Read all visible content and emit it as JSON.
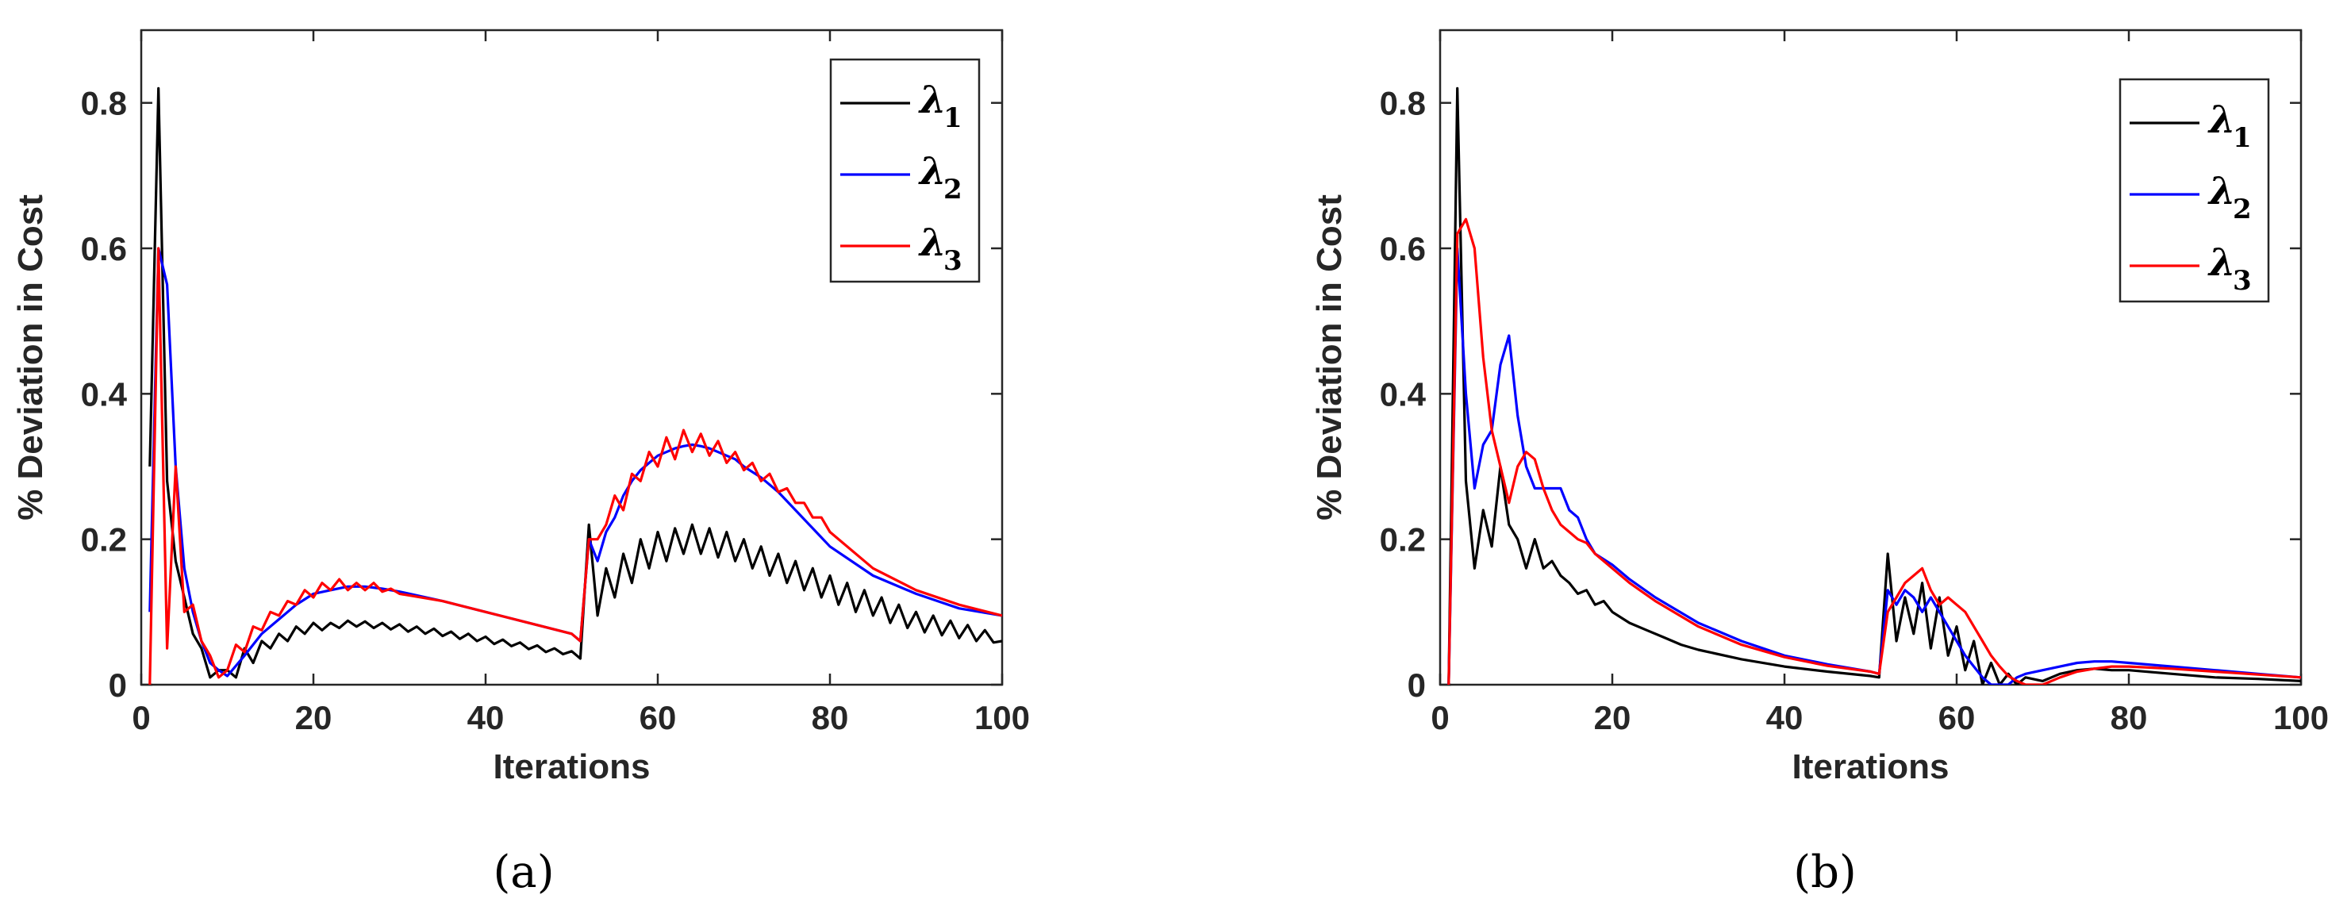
{
  "chart_data": [
    {
      "type": "line",
      "panel_label": "(a)",
      "xlabel": "Iterations",
      "ylabel": "% Deviation in Cost",
      "xlim": [
        0,
        100
      ],
      "ylim": [
        0,
        0.9
      ],
      "x_ticks": [
        0,
        20,
        40,
        60,
        80,
        100
      ],
      "x_tick_labels": [
        "0",
        "20",
        "40",
        "60",
        "80",
        "100"
      ],
      "y_ticks": [
        0,
        0.2,
        0.4,
        0.6,
        0.8
      ],
      "y_tick_labels": [
        "0",
        "0.2",
        "0.4",
        "0.6",
        "0.8"
      ],
      "legend_position": "top-right",
      "series": [
        {
          "name": "λ",
          "subscript": "1",
          "color": "#000000",
          "x": [
            1,
            2,
            3,
            4,
            5,
            6,
            7,
            8,
            9,
            10,
            11,
            12,
            13,
            14,
            15,
            16,
            17,
            18,
            19,
            20,
            21,
            22,
            23,
            24,
            25,
            26,
            27,
            28,
            29,
            30,
            31,
            32,
            33,
            34,
            35,
            36,
            37,
            38,
            39,
            40,
            41,
            42,
            43,
            44,
            45,
            46,
            47,
            48,
            49,
            50,
            51,
            52,
            53,
            54,
            55,
            56,
            57,
            58,
            59,
            60,
            61,
            62,
            63,
            64,
            65,
            66,
            67,
            68,
            69,
            70,
            71,
            72,
            73,
            74,
            75,
            76,
            77,
            78,
            79,
            80,
            81,
            82,
            83,
            84,
            85,
            86,
            87,
            88,
            89,
            90,
            91,
            92,
            93,
            94,
            95,
            96,
            97,
            98,
            99,
            100
          ],
          "y": [
            0.3,
            0.82,
            0.28,
            0.17,
            0.12,
            0.07,
            0.05,
            0.01,
            0.02,
            0.02,
            0.01,
            0.05,
            0.03,
            0.06,
            0.05,
            0.07,
            0.06,
            0.08,
            0.07,
            0.085,
            0.075,
            0.085,
            0.078,
            0.088,
            0.08,
            0.087,
            0.078,
            0.085,
            0.076,
            0.083,
            0.073,
            0.08,
            0.07,
            0.077,
            0.067,
            0.073,
            0.063,
            0.07,
            0.06,
            0.066,
            0.056,
            0.062,
            0.053,
            0.058,
            0.049,
            0.054,
            0.045,
            0.05,
            0.042,
            0.046,
            0.036,
            0.22,
            0.095,
            0.16,
            0.12,
            0.18,
            0.14,
            0.2,
            0.16,
            0.21,
            0.17,
            0.215,
            0.18,
            0.22,
            0.18,
            0.215,
            0.175,
            0.21,
            0.17,
            0.2,
            0.16,
            0.19,
            0.15,
            0.18,
            0.14,
            0.17,
            0.13,
            0.16,
            0.12,
            0.15,
            0.11,
            0.14,
            0.1,
            0.13,
            0.095,
            0.12,
            0.085,
            0.11,
            0.078,
            0.1,
            0.072,
            0.095,
            0.068,
            0.088,
            0.064,
            0.082,
            0.06,
            0.075,
            0.058,
            0.06
          ]
        },
        {
          "name": "λ",
          "subscript": "2",
          "color": "#0000ff",
          "x": [
            1,
            2,
            3,
            4,
            5,
            6,
            7,
            8,
            9,
            10,
            12,
            14,
            16,
            18,
            20,
            22,
            24,
            26,
            28,
            30,
            35,
            40,
            45,
            50,
            51,
            52,
            53,
            54,
            55,
            56,
            57,
            58,
            59,
            60,
            61,
            62,
            63,
            64,
            65,
            66,
            67,
            68,
            69,
            70,
            72,
            74,
            76,
            78,
            80,
            85,
            90,
            95,
            100
          ],
          "y": [
            0.1,
            0.6,
            0.55,
            0.3,
            0.16,
            0.1,
            0.06,
            0.03,
            0.02,
            0.012,
            0.04,
            0.07,
            0.09,
            0.11,
            0.125,
            0.13,
            0.135,
            0.135,
            0.132,
            0.128,
            0.115,
            0.1,
            0.085,
            0.07,
            0.06,
            0.2,
            0.17,
            0.21,
            0.23,
            0.26,
            0.28,
            0.295,
            0.305,
            0.315,
            0.32,
            0.325,
            0.328,
            0.33,
            0.328,
            0.325,
            0.32,
            0.315,
            0.31,
            0.3,
            0.285,
            0.265,
            0.24,
            0.215,
            0.19,
            0.15,
            0.125,
            0.105,
            0.095
          ]
        },
        {
          "name": "λ",
          "subscript": "3",
          "color": "#ff0000",
          "x": [
            1,
            2,
            3,
            4,
            5,
            6,
            7,
            8,
            9,
            10,
            11,
            12,
            13,
            14,
            15,
            16,
            17,
            18,
            19,
            20,
            21,
            22,
            23,
            24,
            25,
            26,
            27,
            28,
            29,
            30,
            35,
            40,
            45,
            50,
            51,
            52,
            53,
            54,
            55,
            56,
            57,
            58,
            59,
            60,
            61,
            62,
            63,
            64,
            65,
            66,
            67,
            68,
            69,
            70,
            71,
            72,
            73,
            74,
            75,
            76,
            77,
            78,
            79,
            80,
            85,
            90,
            95,
            100
          ],
          "y": [
            0.0,
            0.6,
            0.05,
            0.3,
            0.1,
            0.11,
            0.06,
            0.04,
            0.01,
            0.02,
            0.055,
            0.045,
            0.08,
            0.075,
            0.1,
            0.095,
            0.115,
            0.11,
            0.13,
            0.12,
            0.14,
            0.13,
            0.145,
            0.13,
            0.14,
            0.13,
            0.14,
            0.128,
            0.132,
            0.125,
            0.115,
            0.1,
            0.085,
            0.07,
            0.06,
            0.2,
            0.2,
            0.22,
            0.26,
            0.24,
            0.29,
            0.28,
            0.32,
            0.3,
            0.34,
            0.31,
            0.35,
            0.32,
            0.345,
            0.315,
            0.335,
            0.305,
            0.32,
            0.295,
            0.305,
            0.28,
            0.29,
            0.265,
            0.27,
            0.25,
            0.25,
            0.23,
            0.23,
            0.21,
            0.16,
            0.13,
            0.11,
            0.095
          ]
        }
      ]
    },
    {
      "type": "line",
      "panel_label": "(b)",
      "xlabel": "Iterations",
      "ylabel": "% Deviation in Cost",
      "xlim": [
        0,
        100
      ],
      "ylim": [
        0,
        0.9
      ],
      "x_ticks": [
        0,
        20,
        40,
        60,
        80,
        100
      ],
      "x_tick_labels": [
        "0",
        "20",
        "40",
        "60",
        "80",
        "100"
      ],
      "y_ticks": [
        0,
        0.2,
        0.4,
        0.6,
        0.8
      ],
      "y_tick_labels": [
        "0",
        "0.2",
        "0.4",
        "0.6",
        "0.8"
      ],
      "legend_position": "top-right",
      "series": [
        {
          "name": "λ",
          "subscript": "1",
          "color": "#000000",
          "x": [
            1,
            2,
            3,
            4,
            5,
            6,
            7,
            8,
            9,
            10,
            11,
            12,
            13,
            14,
            15,
            16,
            17,
            18,
            19,
            20,
            22,
            24,
            26,
            28,
            30,
            35,
            40,
            45,
            50,
            51,
            52,
            53,
            54,
            55,
            56,
            57,
            58,
            59,
            60,
            61,
            62,
            63,
            64,
            65,
            66,
            67,
            68,
            70,
            72,
            74,
            76,
            78,
            80,
            85,
            90,
            95,
            100
          ],
          "y": [
            0.0,
            0.82,
            0.28,
            0.16,
            0.24,
            0.19,
            0.3,
            0.22,
            0.2,
            0.16,
            0.2,
            0.16,
            0.17,
            0.15,
            0.14,
            0.125,
            0.13,
            0.11,
            0.115,
            0.1,
            0.085,
            0.075,
            0.065,
            0.055,
            0.048,
            0.035,
            0.025,
            0.018,
            0.012,
            0.01,
            0.18,
            0.06,
            0.12,
            0.07,
            0.14,
            0.05,
            0.12,
            0.04,
            0.08,
            0.02,
            0.06,
            0.0,
            0.03,
            0.0,
            0.015,
            0.0,
            0.01,
            0.005,
            0.015,
            0.02,
            0.022,
            0.02,
            0.02,
            0.015,
            0.01,
            0.008,
            0.005
          ]
        },
        {
          "name": "λ",
          "subscript": "2",
          "color": "#0000ff",
          "x": [
            1,
            2,
            3,
            4,
            5,
            6,
            7,
            8,
            9,
            10,
            11,
            12,
            13,
            14,
            15,
            16,
            17,
            18,
            20,
            22,
            25,
            30,
            35,
            40,
            45,
            50,
            51,
            52,
            53,
            54,
            55,
            56,
            57,
            58,
            59,
            60,
            61,
            62,
            63,
            64,
            65,
            66,
            67,
            68,
            70,
            72,
            74,
            76,
            78,
            80,
            85,
            90,
            95,
            100
          ],
          "y": [
            0.0,
            0.6,
            0.4,
            0.27,
            0.33,
            0.35,
            0.44,
            0.48,
            0.37,
            0.3,
            0.27,
            0.27,
            0.27,
            0.27,
            0.24,
            0.23,
            0.2,
            0.18,
            0.165,
            0.145,
            0.12,
            0.085,
            0.06,
            0.04,
            0.028,
            0.018,
            0.015,
            0.13,
            0.11,
            0.13,
            0.12,
            0.1,
            0.12,
            0.1,
            0.08,
            0.06,
            0.04,
            0.025,
            0.01,
            0.0,
            0.0,
            0.0,
            0.01,
            0.015,
            0.02,
            0.025,
            0.03,
            0.032,
            0.032,
            0.03,
            0.025,
            0.02,
            0.015,
            0.01
          ]
        },
        {
          "name": "λ",
          "subscript": "3",
          "color": "#ff0000",
          "x": [
            1,
            2,
            3,
            4,
            5,
            6,
            7,
            8,
            9,
            10,
            11,
            12,
            13,
            14,
            15,
            16,
            17,
            18,
            20,
            22,
            25,
            30,
            35,
            40,
            45,
            50,
            51,
            52,
            53,
            54,
            55,
            56,
            57,
            58,
            59,
            60,
            61,
            62,
            63,
            64,
            65,
            66,
            67,
            68,
            69,
            70,
            72,
            74,
            76,
            78,
            80,
            85,
            90,
            95,
            100
          ],
          "y": [
            0.0,
            0.62,
            0.64,
            0.6,
            0.45,
            0.35,
            0.3,
            0.25,
            0.3,
            0.32,
            0.31,
            0.27,
            0.24,
            0.22,
            0.21,
            0.2,
            0.195,
            0.18,
            0.16,
            0.14,
            0.115,
            0.08,
            0.055,
            0.038,
            0.026,
            0.018,
            0.015,
            0.1,
            0.12,
            0.14,
            0.15,
            0.16,
            0.13,
            0.11,
            0.12,
            0.11,
            0.1,
            0.08,
            0.06,
            0.04,
            0.025,
            0.012,
            0.005,
            0.0,
            0.0,
            0.0,
            0.01,
            0.018,
            0.022,
            0.025,
            0.025,
            0.022,
            0.018,
            0.014,
            0.01
          ]
        }
      ]
    }
  ]
}
